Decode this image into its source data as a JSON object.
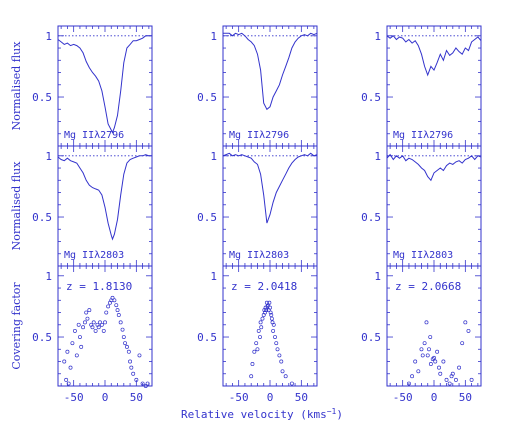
{
  "figure": {
    "ink_color": "#3333cc",
    "background": "#ffffff",
    "row_ylabels": [
      "Normalised flux",
      "Normalised flux",
      "Covering factor"
    ],
    "xlabel_main": "Relative velocity (kms",
    "xlabel_sup": "−1",
    "xlabel_close": ")",
    "x_tick_labels": [
      "-50",
      "0",
      "50"
    ],
    "y_tick_labels": [
      "0.5",
      "1"
    ]
  },
  "chart_data": [
    {
      "type": "line",
      "panel": "flux-mgii-2796-z1",
      "label": "Mg IIλ2796",
      "xlim": [
        -75,
        75
      ],
      "ylim": [
        0.1,
        1.08
      ],
      "continuum": 1,
      "x": [
        -75,
        -70,
        -65,
        -60,
        -55,
        -50,
        -45,
        -40,
        -35,
        -30,
        -25,
        -20,
        -15,
        -10,
        -5,
        0,
        5,
        10,
        12,
        15,
        20,
        25,
        30,
        35,
        40,
        45,
        50,
        55,
        60,
        65,
        70,
        75
      ],
      "y": [
        0.97,
        0.95,
        0.93,
        0.94,
        0.92,
        0.93,
        0.92,
        0.9,
        0.86,
        0.79,
        0.74,
        0.7,
        0.67,
        0.63,
        0.55,
        0.42,
        0.28,
        0.23,
        0.21,
        0.25,
        0.35,
        0.55,
        0.78,
        0.9,
        0.93,
        0.96,
        0.96,
        0.97,
        0.98,
        1.0,
        1.0,
        1.0
      ]
    },
    {
      "type": "line",
      "panel": "flux-mgii-2796-z2",
      "label": "Mg IIλ2796",
      "xlim": [
        -75,
        75
      ],
      "ylim": [
        0.1,
        1.08
      ],
      "continuum": 1,
      "x": [
        -75,
        -70,
        -65,
        -60,
        -55,
        -50,
        -45,
        -40,
        -35,
        -30,
        -25,
        -20,
        -15,
        -10,
        -5,
        0,
        5,
        10,
        15,
        20,
        25,
        30,
        35,
        40,
        45,
        50,
        55,
        60,
        65,
        70,
        75
      ],
      "y": [
        1.02,
        1.02,
        1.02,
        1.0,
        1.02,
        1.01,
        1.02,
        1.0,
        0.97,
        0.95,
        0.92,
        0.85,
        0.72,
        0.45,
        0.4,
        0.42,
        0.5,
        0.55,
        0.6,
        0.68,
        0.75,
        0.82,
        0.9,
        0.95,
        0.98,
        1.0,
        1.01,
        1.0,
        1.02,
        1.01,
        1.02
      ]
    },
    {
      "type": "line",
      "panel": "flux-mgii-2796-z3",
      "label": "Mg IIλ2796",
      "xlim": [
        -75,
        75
      ],
      "ylim": [
        0.1,
        1.08
      ],
      "continuum": 1,
      "x": [
        -75,
        -70,
        -65,
        -60,
        -55,
        -50,
        -45,
        -40,
        -35,
        -30,
        -25,
        -20,
        -15,
        -10,
        -5,
        0,
        5,
        10,
        15,
        20,
        25,
        30,
        35,
        40,
        45,
        50,
        55,
        60,
        65,
        70,
        75
      ],
      "y": [
        1.0,
        0.98,
        1.0,
        0.97,
        0.99,
        0.98,
        0.95,
        0.97,
        0.94,
        0.96,
        0.92,
        0.85,
        0.75,
        0.68,
        0.75,
        0.72,
        0.78,
        0.85,
        0.8,
        0.88,
        0.84,
        0.86,
        0.9,
        0.87,
        0.85,
        0.9,
        0.88,
        0.95,
        0.97,
        0.99,
        0.96
      ]
    },
    {
      "type": "line",
      "panel": "flux-mgii-2803-z1",
      "label": "Mg IIλ2803",
      "xlim": [
        -75,
        75
      ],
      "ylim": [
        0.1,
        1.08
      ],
      "continuum": 1,
      "x": [
        -75,
        -70,
        -65,
        -60,
        -55,
        -50,
        -45,
        -40,
        -35,
        -30,
        -25,
        -20,
        -15,
        -10,
        -5,
        0,
        5,
        10,
        12,
        15,
        20,
        25,
        30,
        35,
        40,
        45,
        50,
        55,
        60,
        65,
        70,
        75
      ],
      "y": [
        0.99,
        0.97,
        0.96,
        0.98,
        0.96,
        0.95,
        0.94,
        0.9,
        0.86,
        0.8,
        0.76,
        0.74,
        0.73,
        0.72,
        0.68,
        0.58,
        0.45,
        0.35,
        0.32,
        0.36,
        0.48,
        0.68,
        0.85,
        0.94,
        0.97,
        0.98,
        0.99,
        1.0,
        1.0,
        1.01,
        1.0,
        1.0
      ]
    },
    {
      "type": "line",
      "panel": "flux-mgii-2803-z2",
      "label": "Mg IIλ2803",
      "xlim": [
        -75,
        75
      ],
      "ylim": [
        0.1,
        1.08
      ],
      "continuum": 1,
      "x": [
        -75,
        -70,
        -65,
        -60,
        -55,
        -50,
        -45,
        -40,
        -35,
        -30,
        -25,
        -20,
        -15,
        -10,
        -5,
        0,
        5,
        10,
        15,
        20,
        25,
        30,
        35,
        40,
        45,
        50,
        55,
        60,
        65,
        70,
        75
      ],
      "y": [
        1.0,
        1.01,
        1.02,
        1.0,
        1.01,
        1.0,
        1.01,
        1.0,
        0.99,
        0.98,
        0.95,
        0.93,
        0.85,
        0.68,
        0.45,
        0.52,
        0.62,
        0.7,
        0.75,
        0.8,
        0.85,
        0.9,
        0.94,
        0.97,
        0.99,
        1.0,
        1.01,
        1.0,
        1.02,
        1.0,
        1.01
      ]
    },
    {
      "type": "line",
      "panel": "flux-mgii-2803-z3",
      "label": "Mg IIλ2803",
      "xlim": [
        -75,
        75
      ],
      "ylim": [
        0.1,
        1.08
      ],
      "continuum": 1,
      "x": [
        -75,
        -70,
        -65,
        -60,
        -55,
        -50,
        -45,
        -40,
        -35,
        -30,
        -25,
        -20,
        -15,
        -10,
        -5,
        0,
        5,
        10,
        15,
        20,
        25,
        30,
        35,
        40,
        45,
        50,
        55,
        60,
        65,
        70,
        75
      ],
      "y": [
        0.98,
        1.01,
        0.97,
        1.0,
        0.98,
        1.0,
        0.96,
        0.98,
        0.97,
        0.95,
        0.93,
        0.9,
        0.88,
        0.83,
        0.8,
        0.86,
        0.88,
        0.9,
        0.88,
        0.92,
        0.94,
        0.93,
        0.95,
        0.96,
        0.94,
        0.97,
        0.98,
        1.0,
        0.97,
        1.0,
        0.99
      ]
    },
    {
      "type": "scatter",
      "panel": "covering-factor-z1",
      "label": "z = 1.8130",
      "xlim": [
        -75,
        75
      ],
      "ylim": [
        0.1,
        1.08
      ],
      "x": [
        -65,
        -62,
        -60,
        -58,
        -55,
        -52,
        -48,
        -45,
        -42,
        -40,
        -38,
        -35,
        -32,
        -30,
        -28,
        -25,
        -22,
        -20,
        -18,
        -15,
        -12,
        -10,
        -8,
        -5,
        -2,
        0,
        2,
        5,
        8,
        10,
        12,
        15,
        18,
        20,
        22,
        25,
        28,
        30,
        32,
        35,
        38,
        40,
        42,
        45,
        50,
        55,
        60,
        65,
        68
      ],
      "y": [
        0.3,
        0.15,
        0.38,
        0.12,
        0.25,
        0.45,
        0.55,
        0.35,
        0.6,
        0.5,
        0.42,
        0.58,
        0.62,
        0.7,
        0.65,
        0.72,
        0.6,
        0.58,
        0.62,
        0.55,
        0.6,
        0.58,
        0.62,
        0.6,
        0.55,
        0.62,
        0.7,
        0.75,
        0.78,
        0.8,
        0.82,
        0.8,
        0.76,
        0.72,
        0.68,
        0.62,
        0.56,
        0.5,
        0.45,
        0.42,
        0.38,
        0.3,
        0.25,
        0.2,
        0.15,
        0.35,
        0.12,
        0.1,
        0.12
      ]
    },
    {
      "type": "scatter",
      "panel": "covering-factor-z2",
      "label": "z = 2.0418",
      "xlim": [
        -75,
        75
      ],
      "ylim": [
        0.1,
        1.08
      ],
      "x": [
        -30,
        -28,
        -25,
        -22,
        -20,
        -18,
        -16,
        -15,
        -14,
        -12,
        -10,
        -9,
        -8,
        -7,
        -6,
        -5,
        -4,
        -3,
        -2,
        -1,
        0,
        1,
        2,
        3,
        4,
        5,
        6,
        8,
        10,
        12,
        15,
        18,
        20,
        25,
        35
      ],
      "y": [
        0.18,
        0.28,
        0.38,
        0.45,
        0.4,
        0.55,
        0.5,
        0.62,
        0.58,
        0.65,
        0.68,
        0.72,
        0.7,
        0.74,
        0.72,
        0.78,
        0.75,
        0.76,
        0.72,
        0.78,
        0.74,
        0.7,
        0.68,
        0.65,
        0.62,
        0.55,
        0.6,
        0.5,
        0.45,
        0.4,
        0.35,
        0.3,
        0.22,
        0.18,
        0.12
      ]
    },
    {
      "type": "scatter",
      "panel": "covering-factor-z3",
      "label": "z = 2.0668",
      "xlim": [
        -75,
        75
      ],
      "ylim": [
        0.1,
        1.08
      ],
      "x": [
        -40,
        -35,
        -30,
        -25,
        -20,
        -18,
        -15,
        -12,
        -10,
        -8,
        -6,
        -5,
        -2,
        0,
        2,
        5,
        8,
        10,
        15,
        20,
        25,
        28,
        30,
        35,
        40,
        45,
        50,
        55,
        60
      ],
      "y": [
        0.12,
        0.18,
        0.3,
        0.22,
        0.4,
        0.35,
        0.45,
        0.62,
        0.35,
        0.4,
        0.5,
        0.28,
        0.32,
        0.33,
        0.3,
        0.38,
        0.25,
        0.2,
        0.3,
        0.15,
        0.12,
        0.18,
        0.2,
        0.15,
        0.25,
        0.45,
        0.62,
        0.55,
        0.15
      ]
    }
  ]
}
